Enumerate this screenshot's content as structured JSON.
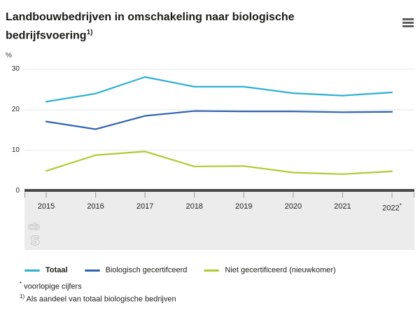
{
  "header": {
    "title": "Landbouwbedrijven in omschakeling naar biologische bedrijfsvoering",
    "title_superscript": "1)"
  },
  "chart_data": {
    "type": "line",
    "title": "Landbouwbedrijven in omschakeling naar biologische bedrijfsvoering",
    "unit_label": "%",
    "categories": [
      "2015",
      "2016",
      "2017",
      "2018",
      "2019",
      "2020",
      "2021",
      "2022"
    ],
    "last_category_suffix": "*",
    "series": [
      {
        "name": "Totaal",
        "color": "#2eb0d2",
        "values": [
          22.0,
          24.0,
          28.1,
          25.7,
          25.7,
          24.1,
          23.5,
          24.3
        ]
      },
      {
        "name": "Biologisch gecertifceerd",
        "color": "#2f64af",
        "values": [
          17.1,
          15.2,
          18.5,
          19.7,
          19.6,
          19.6,
          19.4,
          19.5
        ]
      },
      {
        "name": "Niet gecertificeerd (nieuwkomer)",
        "color": "#b0ca33",
        "values": [
          4.9,
          8.8,
          9.7,
          6.0,
          6.1,
          4.5,
          4.1,
          4.8
        ]
      }
    ],
    "ylim": [
      0,
      30
    ],
    "yticks": [
      0,
      10,
      20,
      30
    ],
    "grid": true,
    "legend_position": "bottom",
    "colors": {
      "gridline": "#e8e8e8",
      "axis_bar": "#484848",
      "axis_band": "#ececec",
      "tick": "#999999"
    }
  },
  "footnotes": [
    {
      "sup": "*",
      "text": "voorlopige cijfers"
    },
    {
      "sup": "1)",
      "text": "Als aandeel van totaal biologische bedrijven"
    }
  ],
  "branding": {
    "logo_top": "cb",
    "logo_bottom": "s"
  }
}
